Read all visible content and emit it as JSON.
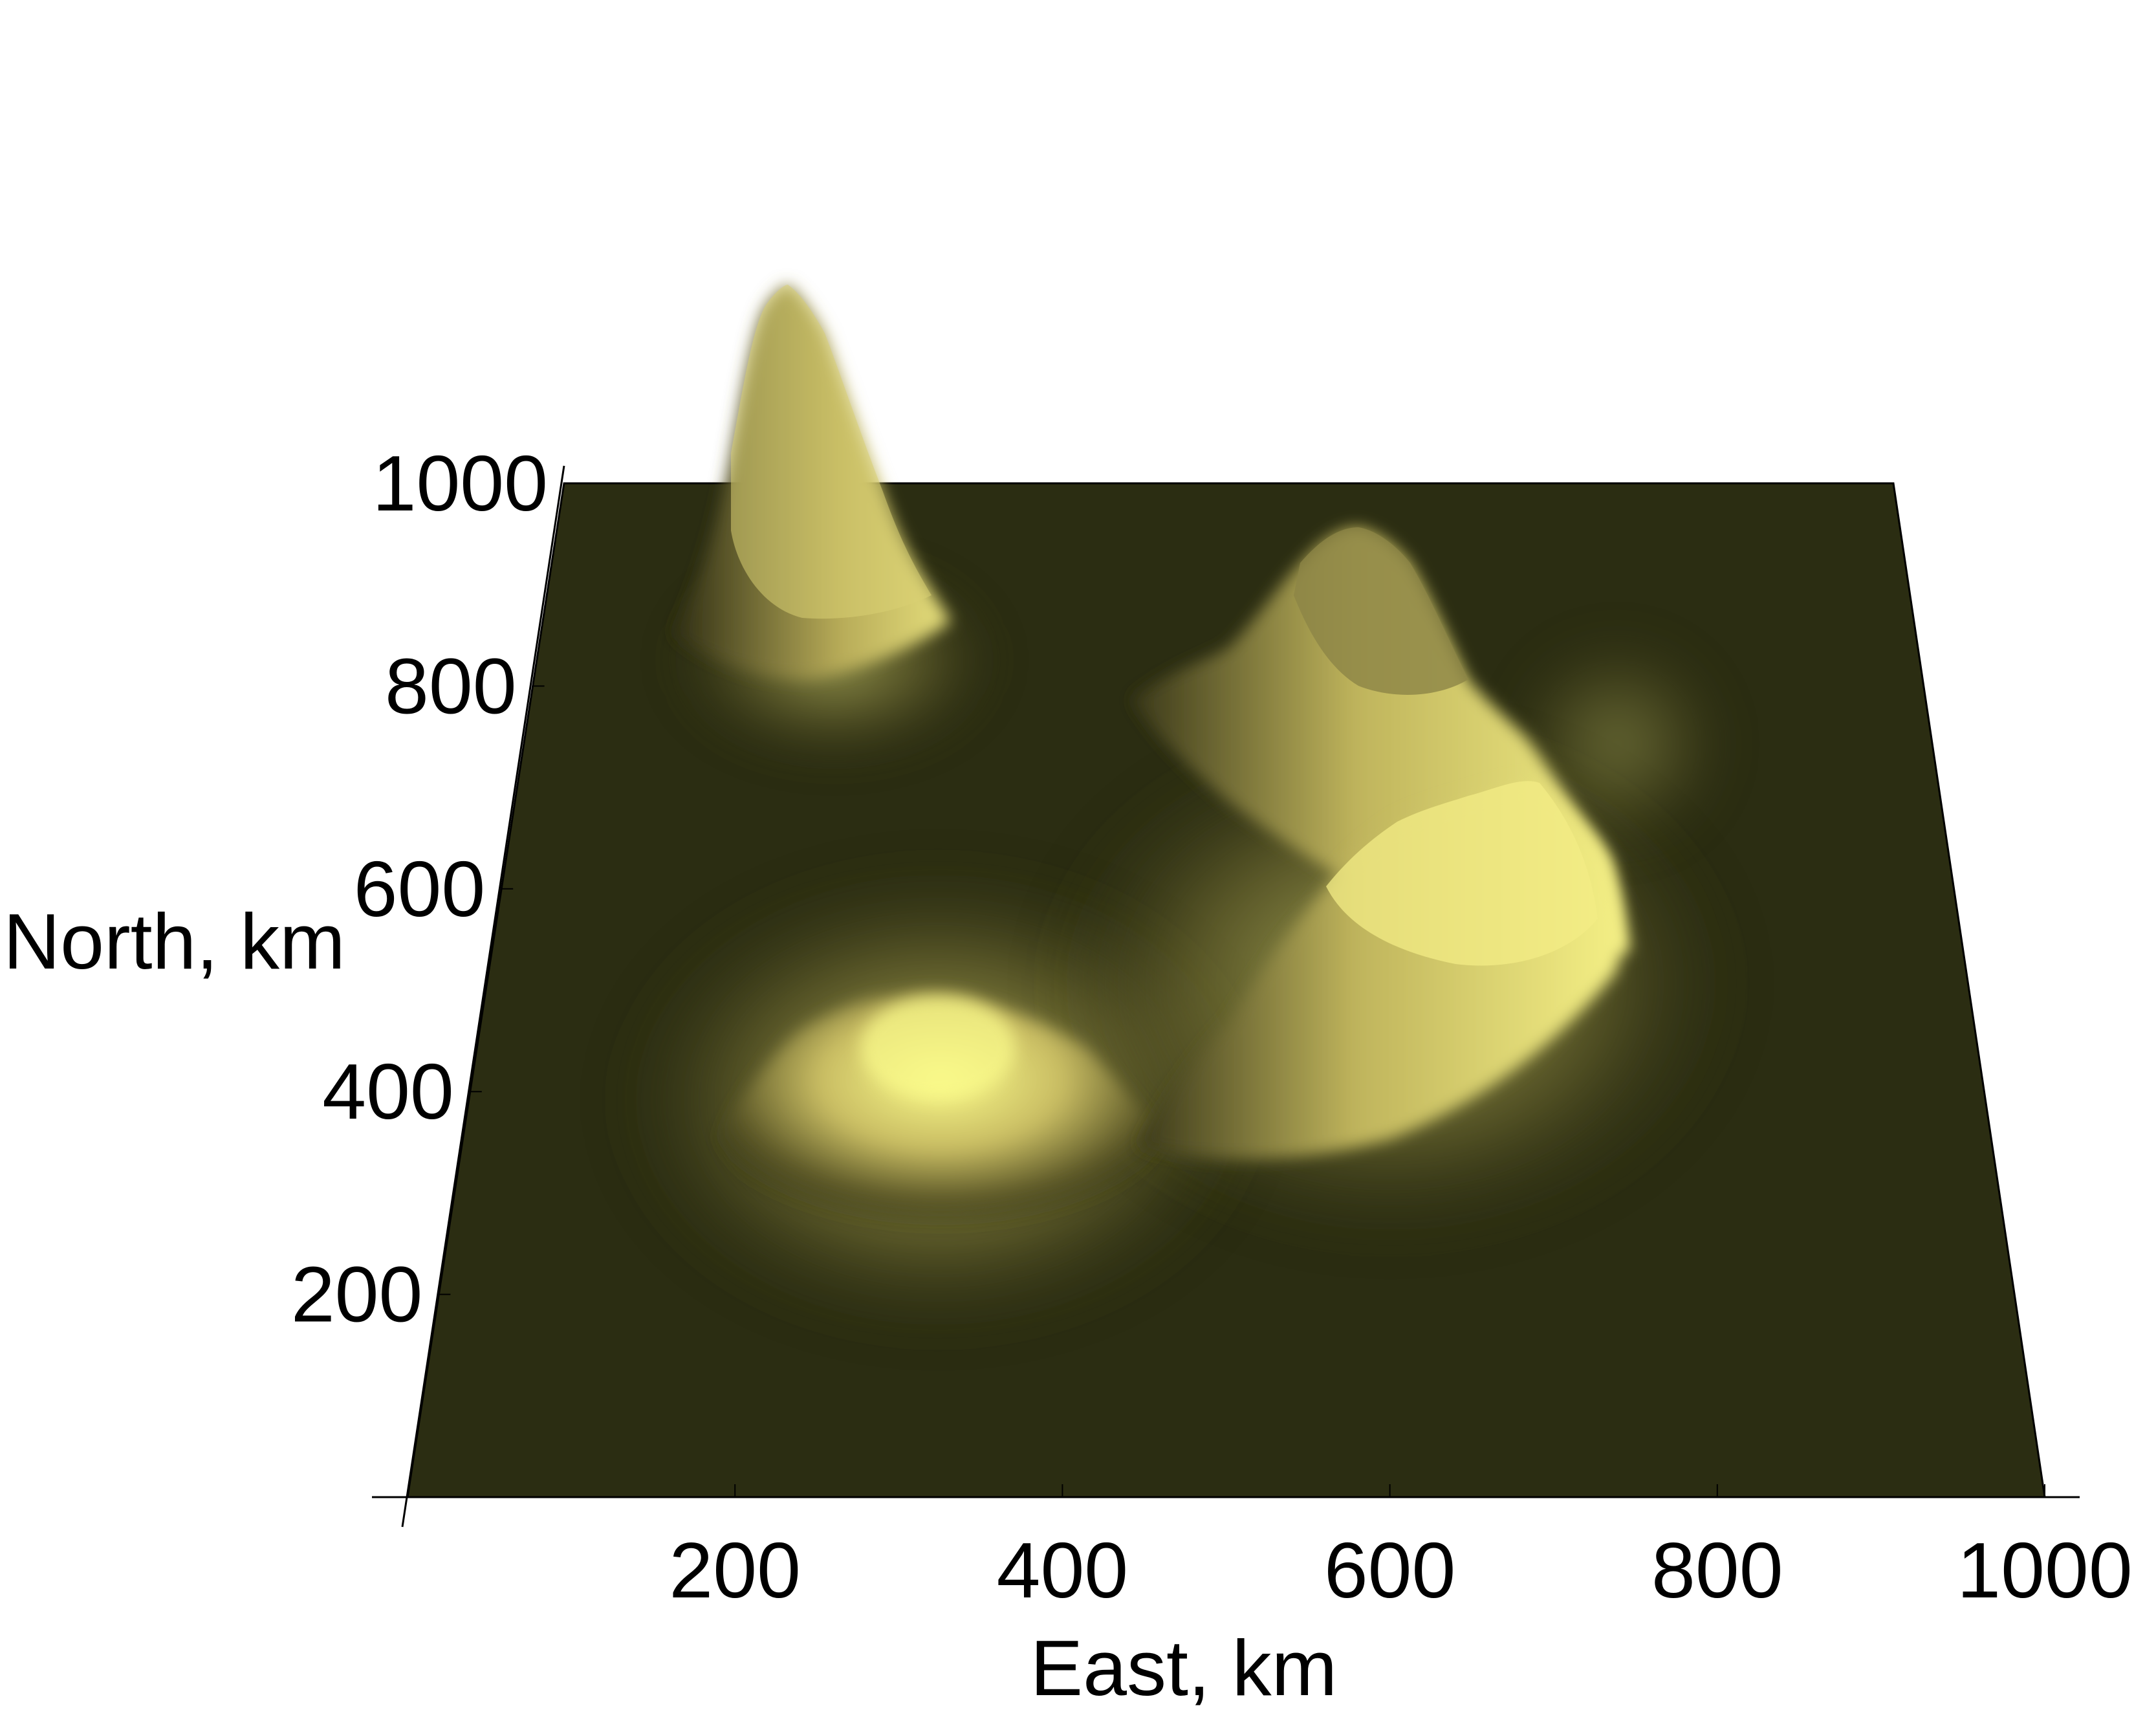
{
  "chart_data": {
    "type": "surface",
    "xlabel": "East, km",
    "ylabel": "North, km",
    "x_ticks": [
      200,
      400,
      600,
      800,
      1000
    ],
    "y_ticks": [
      200,
      400,
      600,
      800,
      1000
    ],
    "xlim": [
      0,
      1000
    ],
    "ylim": [
      0,
      1000
    ],
    "zlim": [
      0,
      1
    ],
    "grid": false,
    "colors": {
      "base": "#2b2d12",
      "highlight": "#fafa8a",
      "shadow": "#1a1a0a"
    },
    "peaks": [
      {
        "east": 230,
        "north": 820,
        "height": 1.0
      },
      {
        "east": 330,
        "north": 360,
        "height": 0.5
      },
      {
        "east": 590,
        "north": 560,
        "height": 0.55
      },
      {
        "east": 680,
        "north": 380,
        "height": 0.6
      }
    ]
  }
}
